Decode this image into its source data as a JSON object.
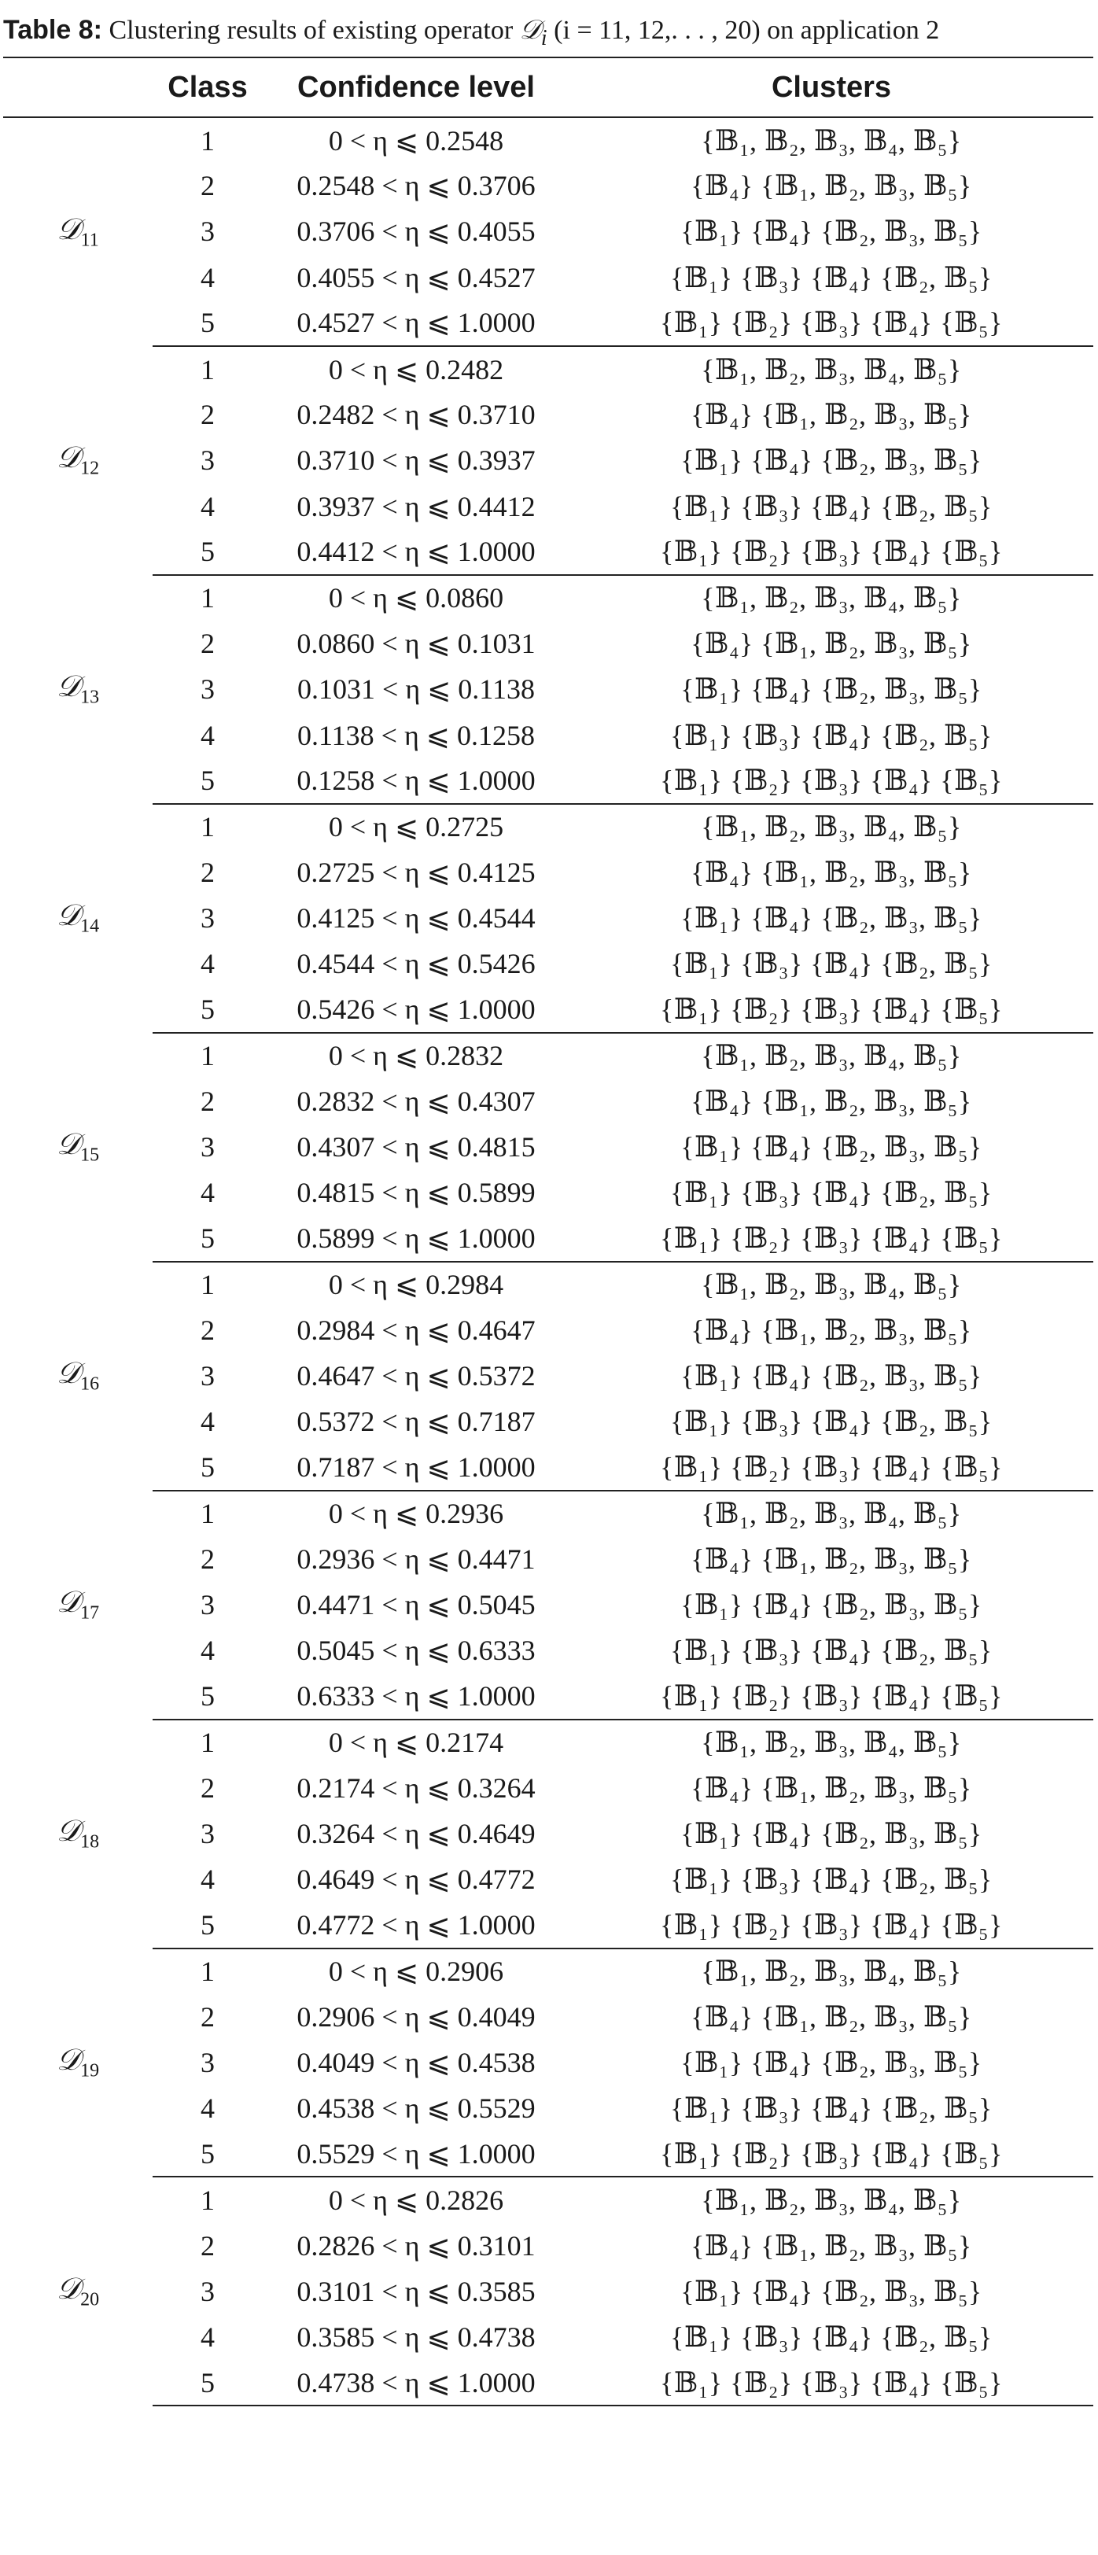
{
  "caption": {
    "label": "Table 8:",
    "text_before": " Clustering results of existing operator ",
    "operator_symbol": "𝒟",
    "operator_index": "i",
    "text_after": " (i = 11, 12,. . . , 20) on application 2"
  },
  "headers": [
    "",
    "Class",
    "Confidence level",
    "Clusters"
  ],
  "cluster_patterns": [
    "{𝔹₁, 𝔹₂, 𝔹₃, 𝔹₄, 𝔹₅}",
    "{𝔹₄} {𝔹₁, 𝔹₂, 𝔹₃, 𝔹₅}",
    "{𝔹₁} {𝔹₄} {𝔹₂, 𝔹₃, 𝔹₅}",
    "{𝔹₁} {𝔹₃} {𝔹₄} {𝔹₂, 𝔹₅}",
    "{𝔹₁} {𝔹₂} {𝔹₃} {𝔹₄} {𝔹₅}"
  ],
  "groups": [
    {
      "operator": "𝒟",
      "subscript": "11",
      "rows": [
        {
          "class": "1",
          "confidence": "0 < η ⩽ 0.2548"
        },
        {
          "class": "2",
          "confidence": "0.2548 < η ⩽ 0.3706"
        },
        {
          "class": "3",
          "confidence": "0.3706 < η ⩽ 0.4055"
        },
        {
          "class": "4",
          "confidence": "0.4055 < η ⩽ 0.4527"
        },
        {
          "class": "5",
          "confidence": "0.4527 < η ⩽ 1.0000"
        }
      ]
    },
    {
      "operator": "𝒟",
      "subscript": "12",
      "rows": [
        {
          "class": "1",
          "confidence": "0 < η ⩽ 0.2482"
        },
        {
          "class": "2",
          "confidence": "0.2482 < η ⩽ 0.3710"
        },
        {
          "class": "3",
          "confidence": "0.3710 < η ⩽ 0.3937"
        },
        {
          "class": "4",
          "confidence": "0.3937 < η ⩽ 0.4412"
        },
        {
          "class": "5",
          "confidence": "0.4412 < η ⩽ 1.0000"
        }
      ]
    },
    {
      "operator": "𝒟",
      "subscript": "13",
      "rows": [
        {
          "class": "1",
          "confidence": "0 < η ⩽ 0.0860"
        },
        {
          "class": "2",
          "confidence": "0.0860 < η ⩽ 0.1031"
        },
        {
          "class": "3",
          "confidence": "0.1031 < η ⩽ 0.1138"
        },
        {
          "class": "4",
          "confidence": "0.1138 < η ⩽ 0.1258"
        },
        {
          "class": "5",
          "confidence": "0.1258 < η ⩽ 1.0000"
        }
      ]
    },
    {
      "operator": "𝒟",
      "subscript": "14",
      "rows": [
        {
          "class": "1",
          "confidence": "0 < η ⩽ 0.2725"
        },
        {
          "class": "2",
          "confidence": "0.2725 < η ⩽ 0.4125"
        },
        {
          "class": "3",
          "confidence": "0.4125 < η ⩽ 0.4544"
        },
        {
          "class": "4",
          "confidence": "0.4544 < η ⩽ 0.5426"
        },
        {
          "class": "5",
          "confidence": "0.5426 < η ⩽ 1.0000"
        }
      ]
    },
    {
      "operator": "𝒟",
      "subscript": "15",
      "rows": [
        {
          "class": "1",
          "confidence": "0 < η ⩽ 0.2832"
        },
        {
          "class": "2",
          "confidence": "0.2832 < η ⩽ 0.4307"
        },
        {
          "class": "3",
          "confidence": "0.4307 < η ⩽ 0.4815"
        },
        {
          "class": "4",
          "confidence": "0.4815 < η ⩽ 0.5899"
        },
        {
          "class": "5",
          "confidence": "0.5899 < η ⩽ 1.0000"
        }
      ]
    },
    {
      "operator": "𝒟",
      "subscript": "16",
      "rows": [
        {
          "class": "1",
          "confidence": "0 < η ⩽ 0.2984"
        },
        {
          "class": "2",
          "confidence": "0.2984 < η ⩽ 0.4647"
        },
        {
          "class": "3",
          "confidence": "0.4647 < η ⩽ 0.5372"
        },
        {
          "class": "4",
          "confidence": "0.5372 < η ⩽ 0.7187"
        },
        {
          "class": "5",
          "confidence": "0.7187 < η ⩽ 1.0000"
        }
      ]
    },
    {
      "operator": "𝒟",
      "subscript": "17",
      "rows": [
        {
          "class": "1",
          "confidence": "0 < η ⩽ 0.2936"
        },
        {
          "class": "2",
          "confidence": "0.2936 < η ⩽ 0.4471"
        },
        {
          "class": "3",
          "confidence": "0.4471 < η ⩽ 0.5045"
        },
        {
          "class": "4",
          "confidence": "0.5045 < η ⩽ 0.6333"
        },
        {
          "class": "5",
          "confidence": "0.6333 < η ⩽ 1.0000"
        }
      ]
    },
    {
      "operator": "𝒟",
      "subscript": "18",
      "rows": [
        {
          "class": "1",
          "confidence": "0 < η ⩽ 0.2174"
        },
        {
          "class": "2",
          "confidence": "0.2174 < η ⩽ 0.3264"
        },
        {
          "class": "3",
          "confidence": "0.3264 < η ⩽ 0.4649"
        },
        {
          "class": "4",
          "confidence": "0.4649 < η ⩽ 0.4772"
        },
        {
          "class": "5",
          "confidence": "0.4772 < η ⩽ 1.0000"
        }
      ]
    },
    {
      "operator": "𝒟",
      "subscript": "19",
      "rows": [
        {
          "class": "1",
          "confidence": "0 < η ⩽ 0.2906"
        },
        {
          "class": "2",
          "confidence": "0.2906 < η ⩽ 0.4049"
        },
        {
          "class": "3",
          "confidence": "0.4049 < η ⩽ 0.4538"
        },
        {
          "class": "4",
          "confidence": "0.4538 < η ⩽ 0.5529"
        },
        {
          "class": "5",
          "confidence": "0.5529 < η ⩽ 1.0000"
        }
      ]
    },
    {
      "operator": "𝒟",
      "subscript": "20",
      "rows": [
        {
          "class": "1",
          "confidence": "0 < η ⩽ 0.2826"
        },
        {
          "class": "2",
          "confidence": "0.2826 < η ⩽ 0.3101"
        },
        {
          "class": "3",
          "confidence": "0.3101 < η ⩽ 0.3585"
        },
        {
          "class": "4",
          "confidence": "0.3585 < η ⩽ 0.4738"
        },
        {
          "class": "5",
          "confidence": "0.4738 < η ⩽ 1.0000"
        }
      ]
    }
  ]
}
